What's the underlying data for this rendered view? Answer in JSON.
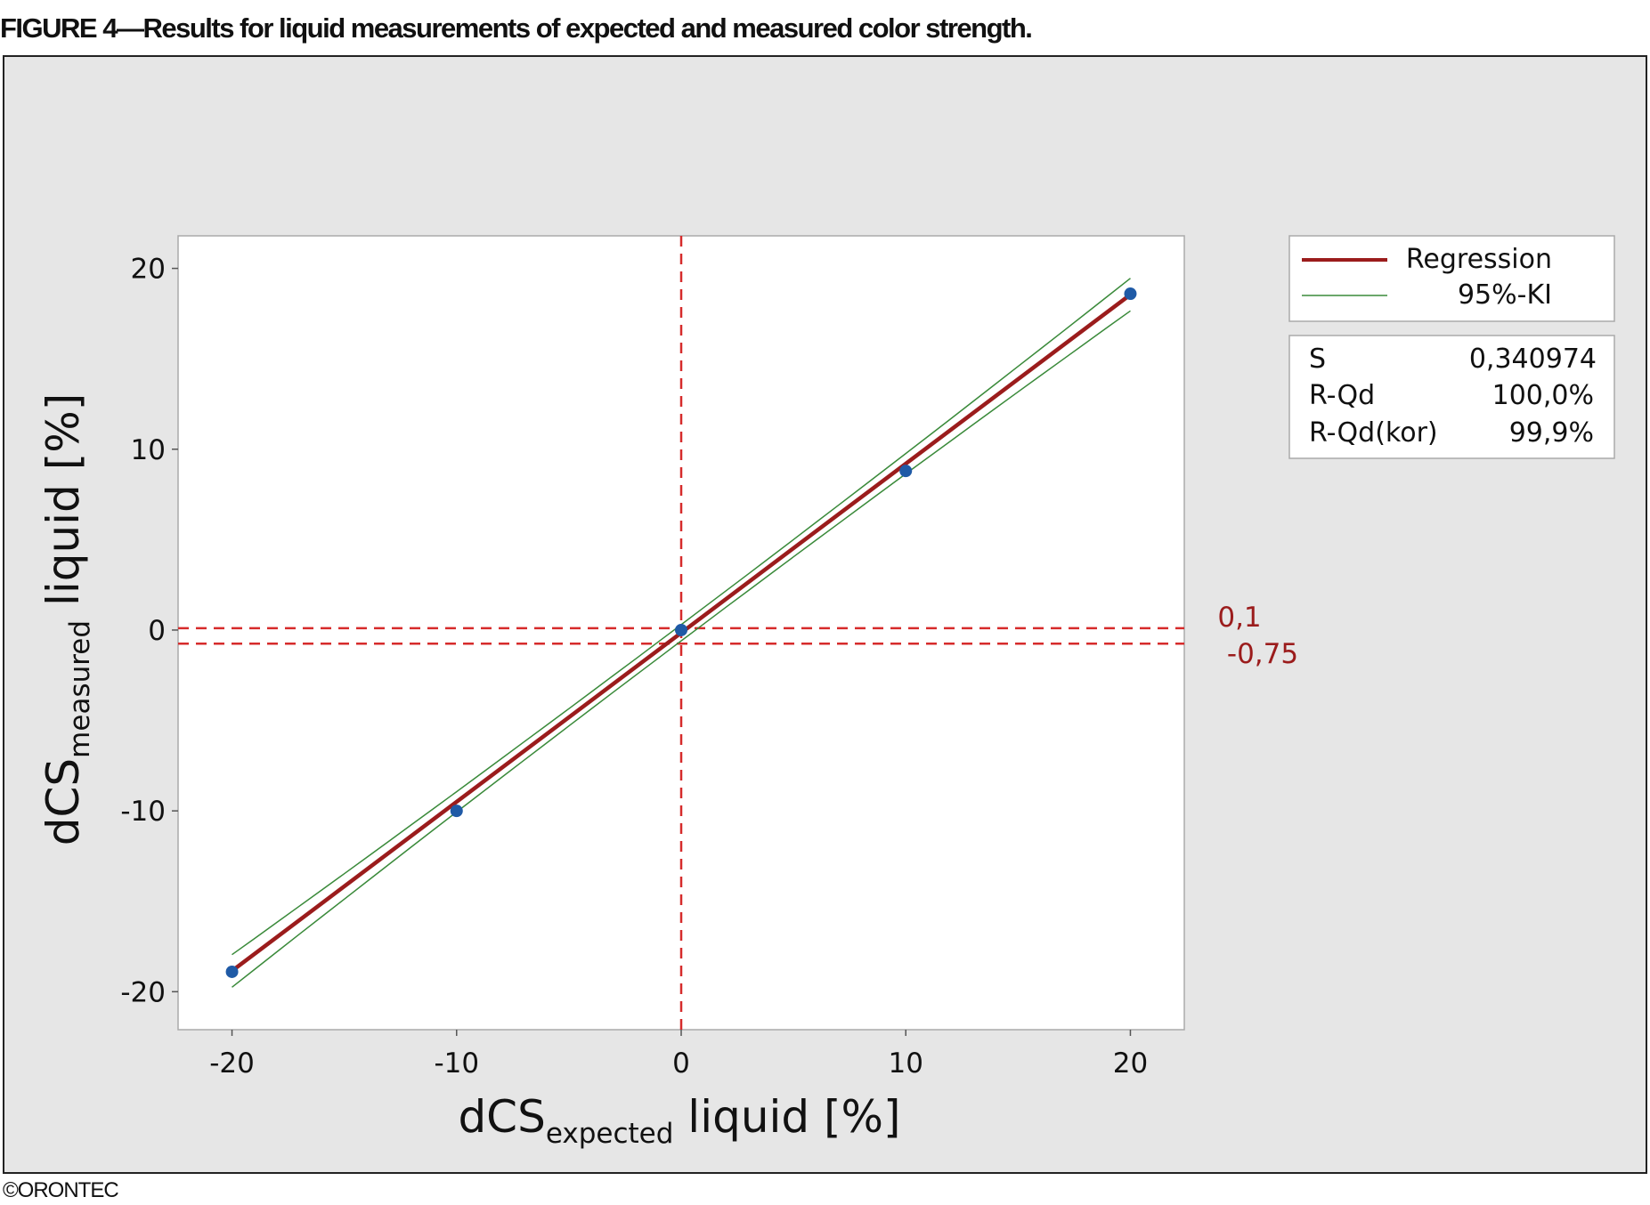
{
  "figure_title": "FIGURE 4—Results for liquid measurements of expected and measured color strength.",
  "credit": "©ORONTEC",
  "chart_data": {
    "type": "scatter",
    "title": "",
    "xlabel": {
      "main": "dCS",
      "sub": "expected",
      "rest": " liquid [%]"
    },
    "ylabel": {
      "main": "dCS",
      "sub": "measured",
      "rest": " liquid [%]"
    },
    "xlim": [
      -22.4,
      22.4
    ],
    "ylim": [
      -22.1,
      21.8
    ],
    "xticks": [
      -20,
      -10,
      0,
      10,
      20
    ],
    "yticks": [
      -20,
      -10,
      0,
      10,
      20
    ],
    "xtick_labels": [
      "-20",
      "-10",
      "0",
      "10",
      "20"
    ],
    "ytick_labels": [
      "-20",
      "-10",
      "0",
      "10",
      "20"
    ],
    "grid": false,
    "points": [
      {
        "x": -20,
        "y": -18.9
      },
      {
        "x": -10,
        "y": -10.0
      },
      {
        "x": 0,
        "y": 0.0
      },
      {
        "x": 10,
        "y": 8.8
      },
      {
        "x": 20,
        "y": 18.6
      }
    ],
    "regression": {
      "slope": 0.935,
      "intercept": -0.15,
      "x_range": [
        -20,
        20
      ]
    },
    "ci_halfwidth": {
      "ends": 0.9,
      "center": 0.45
    },
    "reference_lines": {
      "vertical_x": 0,
      "horizontal": [
        {
          "y": 0.1,
          "label": "0,1"
        },
        {
          "y": -0.75,
          "label": "-0,75"
        }
      ]
    },
    "legend": {
      "placement": "right",
      "entries": [
        {
          "label": "Regression",
          "color": "#9b1c1c"
        },
        {
          "label": "95%-KI",
          "color": "#3a8a3a"
        }
      ]
    },
    "stats": [
      {
        "label": "S",
        "value": "0,340974"
      },
      {
        "label": "R-Qd",
        "value": "100,0%"
      },
      {
        "label": "R-Qd(kor)",
        "value": "99,9%"
      }
    ],
    "colors": {
      "points": "#1f5aa6",
      "regression": "#9b1c1c",
      "ci": "#3a8a3a",
      "reference": "#d62b2b",
      "panel_background": "#e6e6e6"
    }
  }
}
